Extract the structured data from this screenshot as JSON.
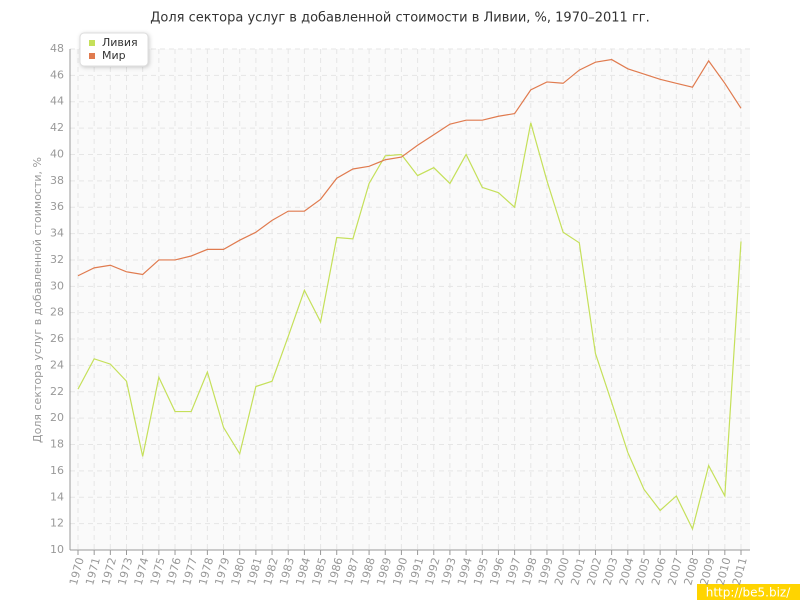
{
  "chart_data": {
    "type": "line",
    "title": "Доля сектора услуг в добавленной стоимости в Ливии, %, 1970–2011 гг.",
    "y_label": "Доля сектора услуг в добавленной стоимости, %",
    "watermark": "http://be5.biz/",
    "categories": [
      "1970",
      "1971",
      "1972",
      "1973",
      "1974",
      "1975",
      "1976",
      "1977",
      "1978",
      "1979",
      "1980",
      "1981",
      "1982",
      "1983",
      "1984",
      "1985",
      "1986",
      "1987",
      "1988",
      "1989",
      "1990",
      "1991",
      "1992",
      "1993",
      "1994",
      "1995",
      "1996",
      "1997",
      "1998",
      "1999",
      "2000",
      "2001",
      "2002",
      "2003",
      "2004",
      "2005",
      "2006",
      "2007",
      "2008",
      "2009",
      "2010",
      "2011"
    ],
    "series": [
      {
        "name": "Ливия",
        "color": "#c5e05a",
        "values": [
          22.2,
          24.5,
          24.1,
          22.8,
          17.1,
          23.1,
          20.5,
          20.5,
          23.5,
          19.3,
          17.3,
          22.4,
          22.8,
          26.2,
          29.7,
          27.3,
          33.7,
          33.6,
          37.8,
          39.9,
          40.0,
          38.4,
          39.0,
          37.8,
          40.0,
          37.5,
          37.1,
          36.0,
          42.4,
          38.0,
          34.1,
          33.3,
          24.9,
          21.2,
          17.4,
          14.6,
          13.0,
          14.1,
          11.6,
          16.4,
          14.1,
          33.4
        ]
      },
      {
        "name": "Мир",
        "color": "#e07b4f",
        "values": [
          30.8,
          31.4,
          31.6,
          31.1,
          30.9,
          32.0,
          32.0,
          32.3,
          32.8,
          32.8,
          33.5,
          34.1,
          35.0,
          35.7,
          35.7,
          36.6,
          38.2,
          38.9,
          39.1,
          39.6,
          39.8,
          40.7,
          41.5,
          42.3,
          42.6,
          42.6,
          42.9,
          43.1,
          44.9,
          45.5,
          45.4,
          46.4,
          47.0,
          47.2,
          46.5,
          46.1,
          45.7,
          45.4,
          45.1,
          47.1,
          45.4,
          43.5
        ]
      }
    ],
    "ylim": [
      10,
      48
    ],
    "yticks": [
      10,
      12,
      14,
      16,
      18,
      20,
      22,
      24,
      26,
      28,
      30,
      32,
      34,
      36,
      38,
      40,
      42,
      44,
      46,
      48
    ],
    "grid": true,
    "legend": "top-left"
  }
}
